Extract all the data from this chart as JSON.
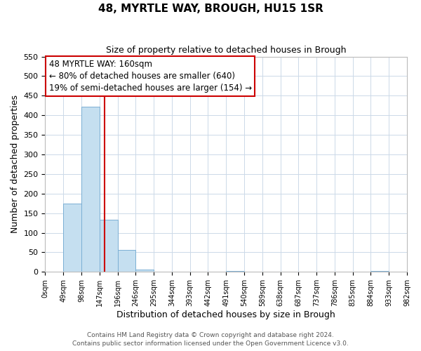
{
  "title": "48, MYRTLE WAY, BROUGH, HU15 1SR",
  "subtitle": "Size of property relative to detached houses in Brough",
  "xlabel": "Distribution of detached houses by size in Brough",
  "ylabel": "Number of detached properties",
  "bin_left_edges": [
    0,
    49,
    98,
    147,
    196,
    245,
    294,
    343,
    392,
    441,
    490,
    539,
    588,
    637,
    686,
    735,
    784,
    833,
    882,
    931
  ],
  "bin_labels": [
    "0sqm",
    "49sqm",
    "98sqm",
    "147sqm",
    "196sqm",
    "246sqm",
    "295sqm",
    "344sqm",
    "393sqm",
    "442sqm",
    "491sqm",
    "540sqm",
    "589sqm",
    "638sqm",
    "687sqm",
    "737sqm",
    "786sqm",
    "835sqm",
    "884sqm",
    "933sqm",
    "982sqm"
  ],
  "bar_heights": [
    0,
    175,
    422,
    134,
    57,
    6,
    0,
    0,
    0,
    0,
    2,
    0,
    0,
    0,
    0,
    0,
    0,
    0,
    2,
    0
  ],
  "bar_color": "#c5dff0",
  "bar_edgecolor": "#7bafd4",
  "bin_width": 49,
  "property_line_x": 160,
  "property_line_color": "#cc0000",
  "ylim": [
    0,
    550
  ],
  "yticks": [
    0,
    50,
    100,
    150,
    200,
    250,
    300,
    350,
    400,
    450,
    500,
    550
  ],
  "xlim": [
    0,
    980
  ],
  "annotation_line1": "48 MYRTLE WAY: 160sqm",
  "annotation_line2": "← 80% of detached houses are smaller (640)",
  "annotation_line3": "19% of semi-detached houses are larger (154) →",
  "annotation_box_edgecolor": "#cc0000",
  "footer_line1": "Contains HM Land Registry data © Crown copyright and database right 2024.",
  "footer_line2": "Contains public sector information licensed under the Open Government Licence v3.0.",
  "background_color": "#ffffff",
  "grid_color": "#ccd9e8",
  "figsize": [
    6.0,
    5.0
  ],
  "dpi": 100
}
